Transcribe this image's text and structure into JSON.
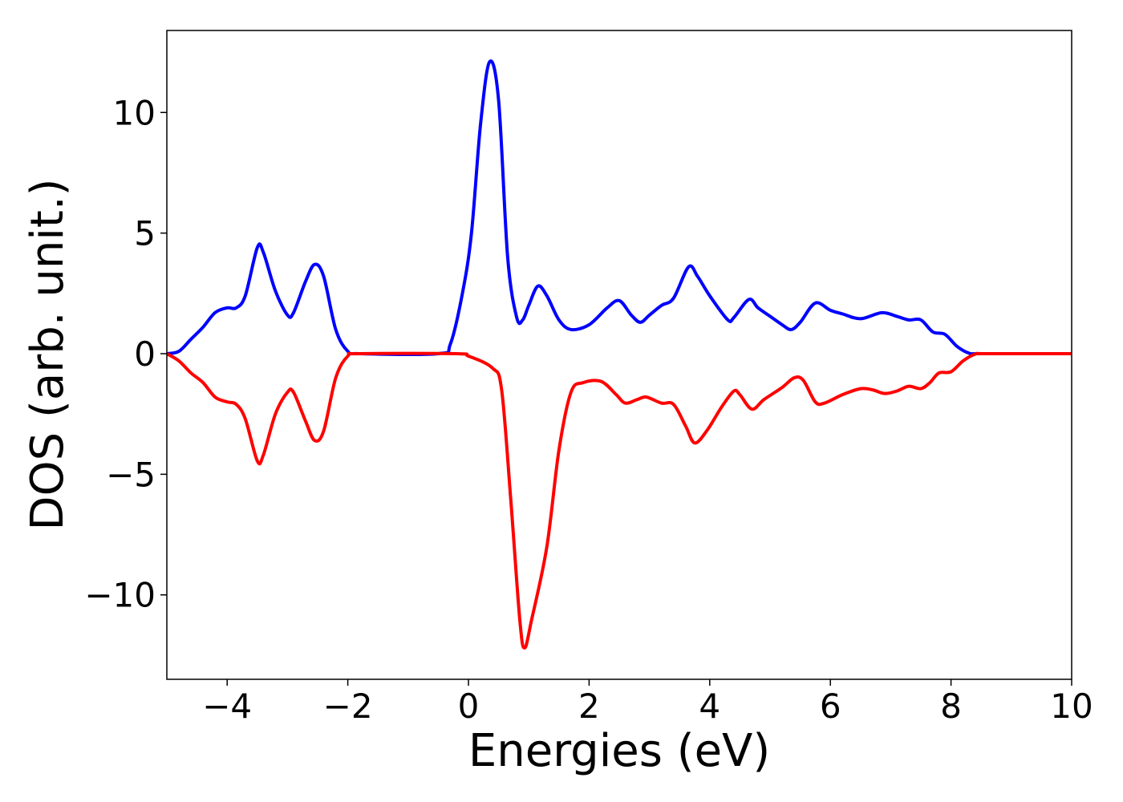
{
  "chart_data": {
    "type": "line",
    "xlabel": "Energies (eV)",
    "ylabel": "DOS (arb. unit.)",
    "xlim": [
      -5,
      10
    ],
    "ylim": [
      -13.5,
      13.4
    ],
    "xticks": [
      {
        "value": -4,
        "label": "−4"
      },
      {
        "value": -2,
        "label": "−2"
      },
      0,
      2,
      4,
      6,
      8,
      10
    ],
    "yticks": [
      {
        "value": -10,
        "label": "−10"
      },
      {
        "value": -5,
        "label": "−5"
      },
      0,
      5,
      10
    ],
    "grid": false,
    "series": [
      {
        "color": "#0000ff",
        "x": [
          -5,
          -4.8,
          -4.6,
          -4.4,
          -4.2,
          -4.0,
          -3.85,
          -3.7,
          -3.5,
          -3.4,
          -3.2,
          -3.0,
          -2.9,
          -2.7,
          -2.55,
          -2.4,
          -2.2,
          -2.0,
          -1.8,
          -0.5,
          -0.3,
          -0.1,
          0.05,
          0.2,
          0.35,
          0.5,
          0.65,
          0.8,
          0.9,
          1.0,
          1.15,
          1.3,
          1.5,
          1.7,
          2.0,
          2.3,
          2.5,
          2.7,
          2.85,
          3.0,
          3.2,
          3.4,
          3.65,
          3.8,
          4.0,
          4.3,
          4.4,
          4.65,
          4.8,
          5.0,
          5.2,
          5.35,
          5.5,
          5.75,
          6.0,
          6.2,
          6.5,
          6.85,
          7.1,
          7.3,
          7.5,
          7.7,
          7.9,
          8.1,
          8.3,
          8.5,
          10
        ],
        "values": [
          0,
          0.1,
          0.6,
          1.1,
          1.7,
          1.9,
          1.9,
          2.4,
          4.4,
          4.2,
          2.6,
          1.6,
          1.7,
          3.0,
          3.7,
          3.2,
          1.0,
          0.1,
          0,
          0,
          0.4,
          2.5,
          5.0,
          9.5,
          12.1,
          10.5,
          4.0,
          1.5,
          1.4,
          2.0,
          2.8,
          2.4,
          1.4,
          1.0,
          1.2,
          1.9,
          2.2,
          1.6,
          1.3,
          1.6,
          2.0,
          2.3,
          3.6,
          3.2,
          2.4,
          1.4,
          1.5,
          2.25,
          1.9,
          1.55,
          1.2,
          1.0,
          1.3,
          2.1,
          1.8,
          1.65,
          1.45,
          1.7,
          1.55,
          1.4,
          1.4,
          0.9,
          0.8,
          0.3,
          0.02,
          0,
          0
        ]
      },
      {
        "color": "#ff0000",
        "x": [
          -5,
          -4.8,
          -4.6,
          -4.4,
          -4.2,
          -4.0,
          -3.85,
          -3.7,
          -3.5,
          -3.4,
          -3.2,
          -3.0,
          -2.9,
          -2.7,
          -2.55,
          -2.4,
          -2.2,
          -2.0,
          -1.8,
          -0.2,
          0.0,
          0.4,
          0.55,
          0.7,
          0.85,
          0.93,
          1.05,
          1.3,
          1.5,
          1.7,
          1.9,
          2.2,
          2.45,
          2.6,
          2.8,
          2.95,
          3.2,
          3.4,
          3.6,
          3.75,
          3.95,
          4.2,
          4.4,
          4.5,
          4.7,
          4.9,
          5.2,
          5.4,
          5.55,
          5.75,
          5.9,
          6.2,
          6.5,
          6.7,
          6.9,
          7.1,
          7.3,
          7.5,
          7.65,
          7.8,
          8.0,
          8.2,
          8.4,
          8.6,
          10
        ],
        "values": [
          0,
          -0.3,
          -0.8,
          -1.2,
          -1.8,
          -2.0,
          -2.1,
          -2.7,
          -4.45,
          -4.2,
          -2.5,
          -1.6,
          -1.6,
          -2.8,
          -3.6,
          -3.2,
          -1.0,
          -0.1,
          0,
          0,
          -0.1,
          -0.6,
          -1.5,
          -6,
          -11,
          -12.2,
          -11,
          -8,
          -4,
          -1.6,
          -1.2,
          -1.15,
          -1.7,
          -2.05,
          -1.9,
          -1.8,
          -2.05,
          -2.1,
          -3.0,
          -3.7,
          -3.2,
          -2.2,
          -1.55,
          -1.7,
          -2.3,
          -1.9,
          -1.4,
          -1.0,
          -1.1,
          -2.0,
          -2.05,
          -1.7,
          -1.45,
          -1.5,
          -1.65,
          -1.55,
          -1.35,
          -1.45,
          -1.2,
          -0.8,
          -0.75,
          -0.3,
          -0.02,
          0,
          0
        ]
      }
    ]
  }
}
